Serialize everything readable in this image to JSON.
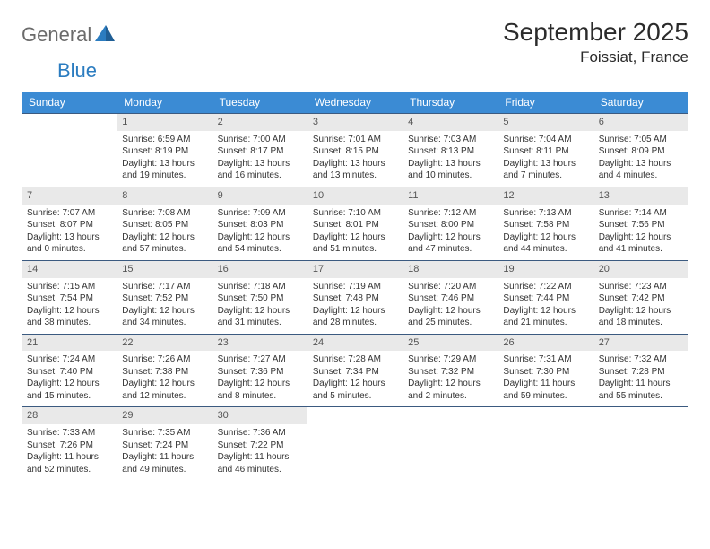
{
  "header": {
    "logo_part1": "General",
    "logo_part2": "Blue",
    "month_title": "September 2025",
    "location": "Foissiat, France"
  },
  "colors": {
    "header_bar": "#3b8bd4",
    "week_border": "#3b5a80",
    "daynum_bg": "#e9e9e9",
    "logo_gray": "#6b6b6b",
    "logo_blue": "#2b7cc0"
  },
  "weekdays": [
    "Sunday",
    "Monday",
    "Tuesday",
    "Wednesday",
    "Thursday",
    "Friday",
    "Saturday"
  ],
  "weeks": [
    [
      {
        "day": "",
        "lines": []
      },
      {
        "day": "1",
        "lines": [
          "Sunrise: 6:59 AM",
          "Sunset: 8:19 PM",
          "Daylight: 13 hours",
          "and 19 minutes."
        ]
      },
      {
        "day": "2",
        "lines": [
          "Sunrise: 7:00 AM",
          "Sunset: 8:17 PM",
          "Daylight: 13 hours",
          "and 16 minutes."
        ]
      },
      {
        "day": "3",
        "lines": [
          "Sunrise: 7:01 AM",
          "Sunset: 8:15 PM",
          "Daylight: 13 hours",
          "and 13 minutes."
        ]
      },
      {
        "day": "4",
        "lines": [
          "Sunrise: 7:03 AM",
          "Sunset: 8:13 PM",
          "Daylight: 13 hours",
          "and 10 minutes."
        ]
      },
      {
        "day": "5",
        "lines": [
          "Sunrise: 7:04 AM",
          "Sunset: 8:11 PM",
          "Daylight: 13 hours",
          "and 7 minutes."
        ]
      },
      {
        "day": "6",
        "lines": [
          "Sunrise: 7:05 AM",
          "Sunset: 8:09 PM",
          "Daylight: 13 hours",
          "and 4 minutes."
        ]
      }
    ],
    [
      {
        "day": "7",
        "lines": [
          "Sunrise: 7:07 AM",
          "Sunset: 8:07 PM",
          "Daylight: 13 hours",
          "and 0 minutes."
        ]
      },
      {
        "day": "8",
        "lines": [
          "Sunrise: 7:08 AM",
          "Sunset: 8:05 PM",
          "Daylight: 12 hours",
          "and 57 minutes."
        ]
      },
      {
        "day": "9",
        "lines": [
          "Sunrise: 7:09 AM",
          "Sunset: 8:03 PM",
          "Daylight: 12 hours",
          "and 54 minutes."
        ]
      },
      {
        "day": "10",
        "lines": [
          "Sunrise: 7:10 AM",
          "Sunset: 8:01 PM",
          "Daylight: 12 hours",
          "and 51 minutes."
        ]
      },
      {
        "day": "11",
        "lines": [
          "Sunrise: 7:12 AM",
          "Sunset: 8:00 PM",
          "Daylight: 12 hours",
          "and 47 minutes."
        ]
      },
      {
        "day": "12",
        "lines": [
          "Sunrise: 7:13 AM",
          "Sunset: 7:58 PM",
          "Daylight: 12 hours",
          "and 44 minutes."
        ]
      },
      {
        "day": "13",
        "lines": [
          "Sunrise: 7:14 AM",
          "Sunset: 7:56 PM",
          "Daylight: 12 hours",
          "and 41 minutes."
        ]
      }
    ],
    [
      {
        "day": "14",
        "lines": [
          "Sunrise: 7:15 AM",
          "Sunset: 7:54 PM",
          "Daylight: 12 hours",
          "and 38 minutes."
        ]
      },
      {
        "day": "15",
        "lines": [
          "Sunrise: 7:17 AM",
          "Sunset: 7:52 PM",
          "Daylight: 12 hours",
          "and 34 minutes."
        ]
      },
      {
        "day": "16",
        "lines": [
          "Sunrise: 7:18 AM",
          "Sunset: 7:50 PM",
          "Daylight: 12 hours",
          "and 31 minutes."
        ]
      },
      {
        "day": "17",
        "lines": [
          "Sunrise: 7:19 AM",
          "Sunset: 7:48 PM",
          "Daylight: 12 hours",
          "and 28 minutes."
        ]
      },
      {
        "day": "18",
        "lines": [
          "Sunrise: 7:20 AM",
          "Sunset: 7:46 PM",
          "Daylight: 12 hours",
          "and 25 minutes."
        ]
      },
      {
        "day": "19",
        "lines": [
          "Sunrise: 7:22 AM",
          "Sunset: 7:44 PM",
          "Daylight: 12 hours",
          "and 21 minutes."
        ]
      },
      {
        "day": "20",
        "lines": [
          "Sunrise: 7:23 AM",
          "Sunset: 7:42 PM",
          "Daylight: 12 hours",
          "and 18 minutes."
        ]
      }
    ],
    [
      {
        "day": "21",
        "lines": [
          "Sunrise: 7:24 AM",
          "Sunset: 7:40 PM",
          "Daylight: 12 hours",
          "and 15 minutes."
        ]
      },
      {
        "day": "22",
        "lines": [
          "Sunrise: 7:26 AM",
          "Sunset: 7:38 PM",
          "Daylight: 12 hours",
          "and 12 minutes."
        ]
      },
      {
        "day": "23",
        "lines": [
          "Sunrise: 7:27 AM",
          "Sunset: 7:36 PM",
          "Daylight: 12 hours",
          "and 8 minutes."
        ]
      },
      {
        "day": "24",
        "lines": [
          "Sunrise: 7:28 AM",
          "Sunset: 7:34 PM",
          "Daylight: 12 hours",
          "and 5 minutes."
        ]
      },
      {
        "day": "25",
        "lines": [
          "Sunrise: 7:29 AM",
          "Sunset: 7:32 PM",
          "Daylight: 12 hours",
          "and 2 minutes."
        ]
      },
      {
        "day": "26",
        "lines": [
          "Sunrise: 7:31 AM",
          "Sunset: 7:30 PM",
          "Daylight: 11 hours",
          "and 59 minutes."
        ]
      },
      {
        "day": "27",
        "lines": [
          "Sunrise: 7:32 AM",
          "Sunset: 7:28 PM",
          "Daylight: 11 hours",
          "and 55 minutes."
        ]
      }
    ],
    [
      {
        "day": "28",
        "lines": [
          "Sunrise: 7:33 AM",
          "Sunset: 7:26 PM",
          "Daylight: 11 hours",
          "and 52 minutes."
        ]
      },
      {
        "day": "29",
        "lines": [
          "Sunrise: 7:35 AM",
          "Sunset: 7:24 PM",
          "Daylight: 11 hours",
          "and 49 minutes."
        ]
      },
      {
        "day": "30",
        "lines": [
          "Sunrise: 7:36 AM",
          "Sunset: 7:22 PM",
          "Daylight: 11 hours",
          "and 46 minutes."
        ]
      },
      {
        "day": "",
        "lines": []
      },
      {
        "day": "",
        "lines": []
      },
      {
        "day": "",
        "lines": []
      },
      {
        "day": "",
        "lines": []
      }
    ]
  ]
}
